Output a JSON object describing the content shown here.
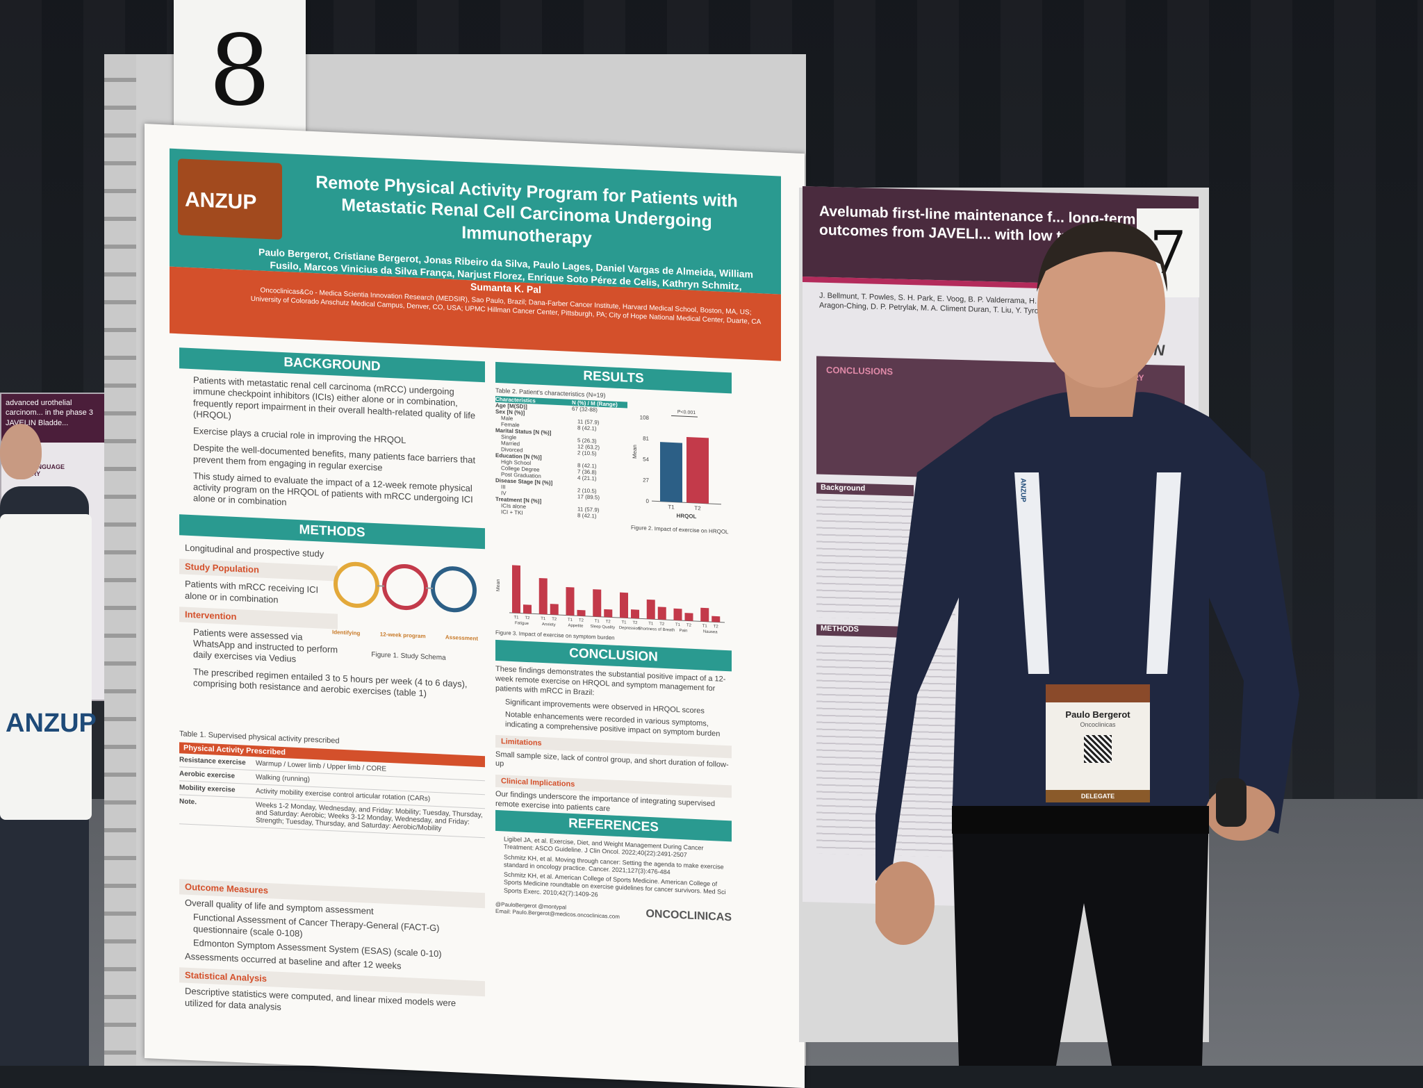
{
  "booth": {
    "left_number": "8",
    "right_number": "7"
  },
  "main_poster": {
    "logo": "ANZUP",
    "title": "Remote Physical Activity Program for Patients with Metastatic Renal Cell Carcinoma Undergoing Immunotherapy",
    "authors": "Paulo Bergerot, Cristiane Bergerot, Jonas Ribeiro da Silva, Paulo Lages, Daniel Vargas de Almeida, William Fusilo, Marcos Vinicius da Silva França, Narjust Florez, Enrique Soto Pérez de Celis, Kathryn Schmitz, Sumanta K. Pal",
    "affiliations": "Oncoclinicas&Co - Medica Scientia Innovation Research (MEDSIR), Sao Paulo, Brazil; Dana-Farber Cancer Institute, Harvard Medical School, Boston, MA, US; University of Colorado Anschutz Medical Campus, Denver, CO, USA; UPMC Hillman Cancer Center, Pittsburgh, PA; City of Hope National Medical Center, Duarte, CA",
    "background": {
      "heading": "BACKGROUND",
      "bullets": [
        "Patients with metastatic renal cell carcinoma (mRCC) undergoing immune checkpoint inhibitors (ICIs) either alone or in combination, frequently report impairment in their overall health-related quality of life (HRQOL)",
        "Exercise plays a crucial role in improving the HRQOL",
        "Despite the well-documented benefits, many patients face barriers that prevent them from engaging in regular exercise",
        "This study aimed to evaluate the impact of a 12-week remote physical activity program on the HRQOL of patients with mRCC undergoing ICI alone or in combination"
      ]
    },
    "methods": {
      "heading": "METHODS",
      "design": "Longitudinal and prospective study",
      "study_population_label": "Study Population",
      "study_population": "Patients with mRCC receiving ICI alone or in combination",
      "intervention_label": "Intervention",
      "intervention_1": "Patients were assessed via WhatsApp and instructed to perform daily exercises via Vedius",
      "intervention_2": "The prescribed regimen entailed 3 to 5 hours per week (4 to 6 days), comprising both resistance and aerobic exercises (table 1)",
      "figure1_caption": "Figure 1. Study Schema",
      "schema_labels": [
        "Identifying",
        "12-week program",
        "Assessment"
      ],
      "table1_caption": "Table 1. Supervised physical activity prescribed",
      "table1_header": "Physical Activity Prescribed",
      "table1_rows": [
        {
          "label": "Resistance exercise",
          "value": "Warmup / Lower limb / Upper limb / CORE"
        },
        {
          "label": "Aerobic exercise",
          "value": "Walking (running)"
        },
        {
          "label": "Mobility exercise",
          "value": "Activity mobility exercise control articular rotation (CARs)"
        },
        {
          "label": "Note.",
          "value": "Weeks 1-2 Monday, Wednesday, and Friday: Mobility; Tuesday, Thursday, and Saturday: Aerobic; Weeks 3-12 Monday, Wednesday, and Friday: Strength; Tuesday, Thursday, and Saturday: Aerobic/Mobility"
        }
      ],
      "outcome_label": "Outcome Measures",
      "outcome_1": "Overall quality of life and symptom assessment",
      "outcome_2": "Functional Assessment of Cancer Therapy-General (FACT-G) questionnaire (scale 0-108)",
      "outcome_3": "Edmonton Symptom Assessment System (ESAS) (scale 0-10)",
      "outcome_4": "Assessments occurred at baseline and after 12 weeks",
      "stats_label": "Statistical Analysis",
      "stats_text": "Descriptive statistics were computed, and linear mixed models were utilized for data analysis"
    },
    "results": {
      "heading": "RESULTS",
      "table2_caption": "Table 2. Patient's characteristics (N=19)",
      "table2_head": [
        "Characteristics",
        "N (%) / M (Range)"
      ],
      "table2_rows": [
        [
          "Age [M(SD)]",
          "67 (32-88)"
        ],
        [
          "Sex [N (%)]",
          ""
        ],
        [
          "Male",
          "11 (57.9)"
        ],
        [
          "Female",
          "8 (42.1)"
        ],
        [
          "Marital Status [N (%)]",
          ""
        ],
        [
          "Single",
          "5 (26.3)"
        ],
        [
          "Married",
          "12 (63.2)"
        ],
        [
          "Divorced",
          "2 (10.5)"
        ],
        [
          "Education [N (%)]",
          ""
        ],
        [
          "High School",
          "8 (42.1)"
        ],
        [
          "College Degree",
          "7 (36.8)"
        ],
        [
          "Post Graduation",
          "4 (21.1)"
        ],
        [
          "Disease Stage [N (%)]",
          ""
        ],
        [
          "III",
          "2 (10.5)"
        ],
        [
          "IV",
          "17 (89.5)"
        ],
        [
          "Treatment [N (%)]",
          ""
        ],
        [
          "ICIs alone",
          "11 (57.9)"
        ],
        [
          "ICI + TKI",
          "8 (42.1)"
        ]
      ],
      "figure2_caption": "Figure 2. Impact of exercise on HRQOL",
      "figure2_ylabel": "Mean",
      "figure2_xlabel": "HRQOL",
      "figure2_p": "P<0.001",
      "figure3_caption": "Figure 3. Impact of exercise on symptom burden",
      "figure3_ylabel": "Mean"
    },
    "conclusion": {
      "heading": "CONCLUSION",
      "text": "These findings demonstrates the substantial positive impact of a 12-week remote exercise on HRQOL and symptom management for patients with mRCC in Brazil:",
      "bullet_1": "Significant improvements were observed in HRQOL scores",
      "bullet_2": "Notable enhancements were recorded in various symptoms, indicating a comprehensive positive impact on symptom burden",
      "limitations_label": "Limitations",
      "limitations": "Small sample size, lack of control group, and short duration of follow-up",
      "implications_label": "Clinical Implications",
      "implications": "Our findings underscore the importance of integrating supervised remote exercise into patients care"
    },
    "references": {
      "heading": "REFERENCES",
      "items": [
        "Ligibel JA, et al. Exercise, Diet, and Weight Management During Cancer Treatment: ASCO Guideline. J Clin Oncol. 2022;40(22):2491-2507",
        "Schmitz KH, et al. Moving through cancer: Setting the agenda to make exercise standard in oncology practice. Cancer. 2021;127(3):476-484",
        "Schmitz KH, et al. American College of Sports Medicine. American College of Sports Medicine roundtable on exercise guidelines for cancer survivors. Med Sci Sports Exerc. 2010;42(7):1409-26"
      ],
      "contact": "@PauloBergerot @montypal",
      "email": "Email: Paulo.Bergerot@medicos.oncoclinicas.com",
      "sponsor_logo": "ONCOCLINICAS"
    }
  },
  "chart_data": [
    {
      "type": "bar",
      "categories": [
        "T1",
        "T2"
      ],
      "values": [
        77,
        85
      ],
      "xlabel": "HRQOL",
      "ylabel": "Mean",
      "ylim": [
        0,
        108
      ],
      "yticks": [
        0,
        27,
        54,
        81,
        108
      ],
      "annotations": [
        "P<0.001"
      ],
      "colors": [
        "#2c5f86",
        "#c33a4a"
      ]
    },
    {
      "type": "bar",
      "categories": [
        "Fatigue",
        "Anxiety",
        "Appetite",
        "Sleep Quality",
        "Depression",
        "Shortness of Breath",
        "Pain",
        "Nausea"
      ],
      "series": [
        {
          "name": "T1",
          "values": [
            4.9,
            3.7,
            2.9,
            2.8,
            2.6,
            2.0,
            1.2,
            1.4
          ]
        },
        {
          "name": "T2",
          "values": [
            0.9,
            1.1,
            0.6,
            0.8,
            0.9,
            1.3,
            0.8,
            0.6
          ]
        }
      ],
      "ylabel": "Mean",
      "ylim": [
        0,
        5
      ],
      "colors": [
        "#c33a4a",
        "#c33a4a"
      ]
    }
  ],
  "right_poster": {
    "title": "Avelumab first-line maintenance f... long-term outcomes from JAVELI... with low tumor burden",
    "title_tail": "carcin",
    "authors": "J. Bellmunt, T. Powles, S. H. Park, E. Voog, B. P. Valderrama, H. Gurney, J. B. Aragon-Ching, D. P. Petrylak, M. A. Climent Duran, T. Liu, Y. Tyroller",
    "conclusions_label": "CONCLUSIONS",
    "summary_label": "SUMMARY",
    "background_label": "Background",
    "methods_label": "METHODS",
    "logo": "JAVELIN"
  },
  "far_left_poster": {
    "title": "advanced urothelial carcinom... in the phase 3 JAVELIN Bladde...",
    "section": "PLAIN LANGUAGE SUMMARY"
  },
  "tote_bag": {
    "logo": "ANZUP"
  },
  "badge": {
    "name": "Paulo Bergerot",
    "org": "Oncoclinicas",
    "role": "DELEGATE",
    "lanyard": "ANZUP"
  }
}
